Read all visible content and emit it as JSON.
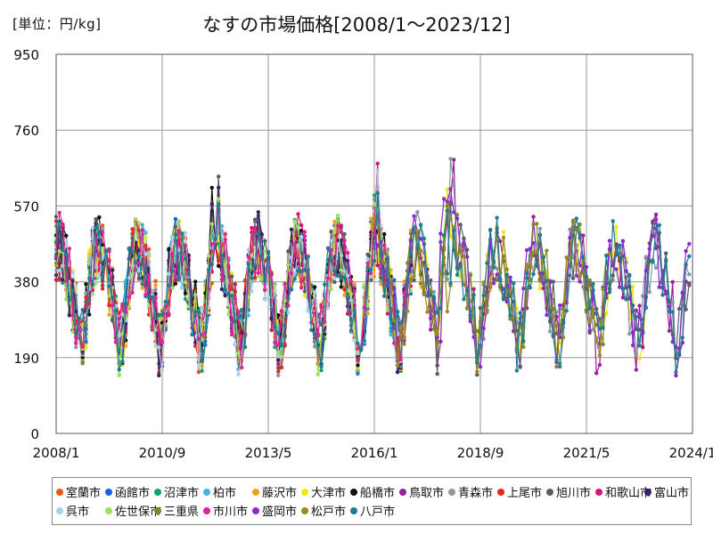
{
  "unit_label": "[単位：円/kg]",
  "chart_data": {
    "type": "line",
    "title": "なすの市場価格[2008/1～2023/12]",
    "ylim": [
      0,
      950
    ],
    "yticks": [
      "0",
      "190",
      "380",
      "570",
      "760",
      "950"
    ],
    "xticks": [
      "2008/1",
      "2010/9",
      "2013/5",
      "2016/1",
      "2018/9",
      "2021/5",
      "2024/1"
    ],
    "grid": true,
    "legend_position": "bottom",
    "series": [
      {
        "name": "室蘭市",
        "color": "#E8590C",
        "years": [
          2008,
          2011
        ]
      },
      {
        "name": "函館市",
        "color": "#1C5FE0",
        "years": [
          2008,
          2016
        ]
      },
      {
        "name": "沼津市",
        "color": "#11A36F",
        "years": [
          2008,
          2016
        ]
      },
      {
        "name": "柏市",
        "color": "#46B2E8",
        "years": [
          2008,
          2016
        ]
      },
      {
        "name": "藤沢市",
        "color": "#F0A11A",
        "years": [
          2008,
          2016
        ]
      },
      {
        "name": "大津市",
        "color": "#F2E611",
        "years": [
          2008,
          2022
        ]
      },
      {
        "name": "船橋市",
        "color": "#111111",
        "years": [
          2008,
          2016
        ]
      },
      {
        "name": "鳥取市",
        "color": "#9B1F9E",
        "years": [
          2016,
          2023
        ]
      },
      {
        "name": "青森市",
        "color": "#8A97A1",
        "years": [
          2008,
          2023
        ]
      },
      {
        "name": "上尾市",
        "color": "#E8271D",
        "years": [
          2008,
          2016
        ]
      },
      {
        "name": "旭川市",
        "color": "#555E68",
        "years": [
          2008,
          2023
        ]
      },
      {
        "name": "和歌山市",
        "color": "#D6166E",
        "years": [
          2008,
          2016
        ]
      },
      {
        "name": "富山市",
        "color": "#3A1E6E",
        "years": [
          2008,
          2016
        ]
      },
      {
        "name": "呉市",
        "color": "#A8D2EA",
        "years": [
          2008,
          2016
        ]
      },
      {
        "name": "佐世保市",
        "color": "#A5DE5A",
        "years": [
          2008,
          2016
        ]
      },
      {
        "name": "三重県",
        "color": "#7D8A24",
        "years": [
          2016,
          2021
        ]
      },
      {
        "name": "市川市",
        "color": "#E0239A",
        "years": [
          2008,
          2016
        ]
      },
      {
        "name": "盛岡市",
        "color": "#8A2BD0",
        "years": [
          2016,
          2023
        ]
      },
      {
        "name": "松戸市",
        "color": "#9E8A20",
        "years": [
          2016,
          2021
        ]
      },
      {
        "name": "八戸市",
        "color": "#1B7F94",
        "years": [
          2008,
          2023
        ]
      }
    ]
  }
}
